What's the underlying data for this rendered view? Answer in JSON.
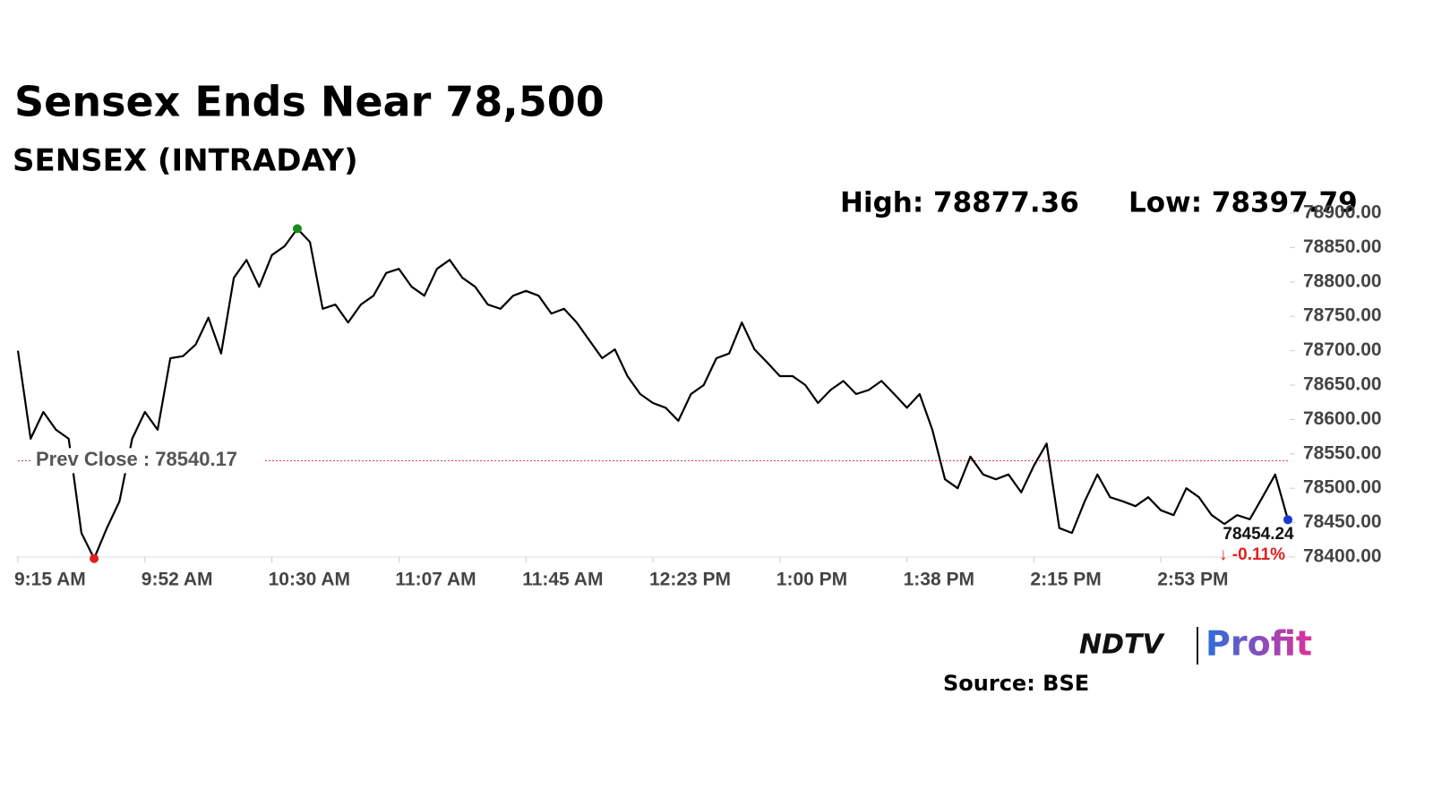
{
  "chart_data": {
    "type": "line",
    "title": "Sensex Ends Near 78,500",
    "subtitle": "SENSEX (INTRADAY)",
    "high": {
      "value": 78877.36,
      "label": "High: 78877.36"
    },
    "low": {
      "value": 78397.79,
      "label": "Low: 78397.79"
    },
    "prev_close": {
      "value": 78540.17,
      "label": "Prev Close : 78540.17"
    },
    "last": {
      "value": 78454.24,
      "label": "78454.24"
    },
    "change_label": "↓ -0.11%",
    "color": "#000000",
    "categories": [
      "9:15 AM",
      null,
      null,
      null,
      null,
      null,
      null,
      null,
      null,
      null,
      "9:52 AM",
      null,
      null,
      null,
      null,
      null,
      null,
      null,
      null,
      null,
      "10:30 AM",
      null,
      null,
      null,
      null,
      null,
      null,
      null,
      null,
      null,
      "11:07 AM",
      null,
      null,
      null,
      null,
      null,
      null,
      null,
      null,
      null,
      "11:45 AM",
      null,
      null,
      null,
      null,
      null,
      null,
      null,
      null,
      null,
      "12:23 PM",
      null,
      null,
      null,
      null,
      null,
      null,
      null,
      null,
      null,
      "1:00 PM",
      null,
      null,
      null,
      null,
      null,
      null,
      null,
      null,
      null,
      "1:38 PM",
      null,
      null,
      null,
      null,
      null,
      null,
      null,
      null,
      null,
      "2:15 PM",
      null,
      null,
      null,
      null,
      null,
      null,
      null,
      null,
      null,
      "2:53 PM",
      null,
      null,
      null,
      null,
      null,
      null,
      null,
      null,
      null,
      null
    ],
    "values": [
      78700,
      78572,
      78611,
      78585,
      78572,
      78435,
      78397.79,
      78442,
      78481,
      78572,
      78611,
      78585,
      78689,
      78692,
      78709,
      78748,
      78696,
      78806,
      78832,
      78793,
      78839,
      78852,
      78877.36,
      78858,
      78761,
      78767,
      78741,
      78767,
      78780,
      78813,
      78819,
      78793,
      78780,
      78819,
      78832,
      78806,
      78793,
      78767,
      78761,
      78780,
      78787,
      78780,
      78754,
      78761,
      78741,
      78715,
      78689,
      78702,
      78663,
      78637,
      78624,
      78617,
      78598,
      78637,
      78650,
      78689,
      78696,
      78741,
      78702,
      78683,
      78663,
      78663,
      78650,
      78624,
      78643,
      78656,
      78637,
      78643,
      78656,
      78637,
      78617,
      78637,
      78585,
      78513,
      78500,
      78546,
      78520,
      78513,
      78520,
      78494,
      78533,
      78565,
      78442,
      78435,
      78481,
      78520,
      78487,
      78481,
      78474,
      78487,
      78468,
      78461,
      78500,
      78487,
      78461,
      78448,
      78461,
      78455,
      78487,
      78520,
      78454.24
    ],
    "ylim": [
      78400,
      78900
    ],
    "yticks": [
      {
        "value": 78400,
        "label": "78400.00"
      },
      {
        "value": 78450,
        "label": "78450.00"
      },
      {
        "value": 78500,
        "label": "78500.00"
      },
      {
        "value": 78550,
        "label": "78550.00"
      },
      {
        "value": 78600,
        "label": "78600.00"
      },
      {
        "value": 78650,
        "label": "78650.00"
      },
      {
        "value": 78700,
        "label": "78700.00"
      },
      {
        "value": 78750,
        "label": "78750.00"
      },
      {
        "value": 78800,
        "label": "78800.00"
      },
      {
        "value": 78850,
        "label": "78850.00"
      },
      {
        "value": 78900,
        "label": "78900.00"
      }
    ],
    "grid": false
  },
  "branding": {
    "ndtv": "NDTV",
    "profit": "Profit",
    "source": "Source: BSE"
  }
}
